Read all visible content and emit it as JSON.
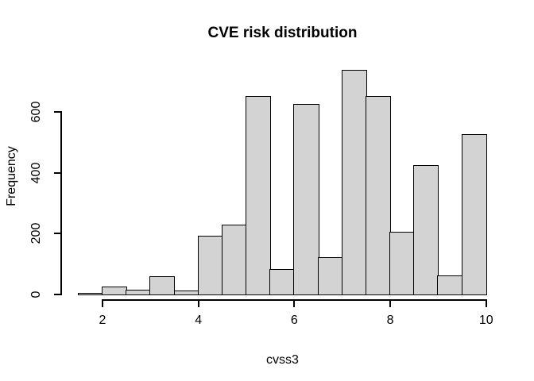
{
  "chart_data": {
    "type": "bar",
    "subtype": "histogram",
    "title": "CVE risk distribution",
    "xlabel": "cvss3",
    "ylabel": "Frequency",
    "bin_edges": [
      1.5,
      2.0,
      2.5,
      3.0,
      3.5,
      4.0,
      4.5,
      5.0,
      5.5,
      6.0,
      6.5,
      7.0,
      7.5,
      8.0,
      8.5,
      9.0,
      9.5,
      10.0
    ],
    "counts": [
      2,
      23,
      13,
      57,
      11,
      190,
      228,
      648,
      80,
      622,
      119,
      736,
      649,
      203,
      423,
      61,
      523
    ],
    "x_ticks": [
      2,
      4,
      6,
      8,
      10
    ],
    "y_ticks": [
      0,
      200,
      400,
      600
    ],
    "xlim": [
      1.5,
      10
    ],
    "ylim": [
      0,
      745
    ],
    "grid": false,
    "legend": "none",
    "bar_fill": "#d3d3d3",
    "bar_border": "#000000",
    "axis_color": "#000000",
    "background": "#ffffff"
  }
}
